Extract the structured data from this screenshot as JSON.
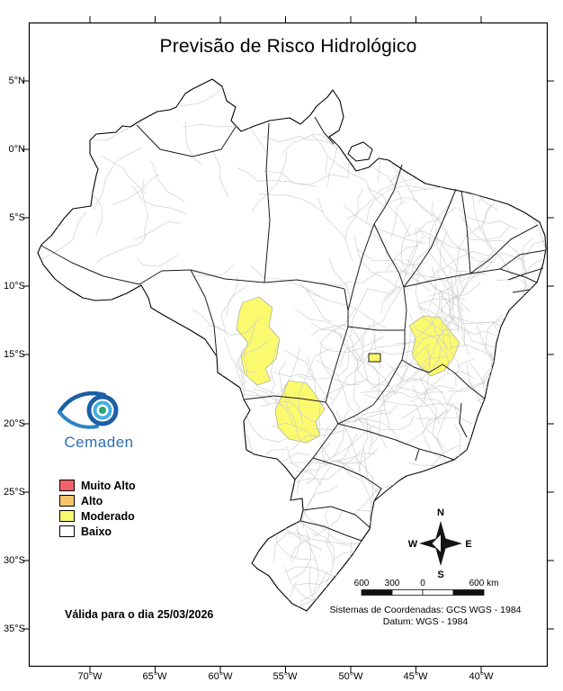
{
  "title": "Previsão de Risco Hidrológico",
  "logo": {
    "brand": "Cemaden"
  },
  "legend": {
    "items": [
      {
        "label": "Muito Alto",
        "color": "#f3636b"
      },
      {
        "label": "Alto",
        "color": "#f6c46d"
      },
      {
        "label": "Moderado",
        "color": "#fbfa6e"
      },
      {
        "label": "Baixo",
        "color": "#ffffff"
      }
    ]
  },
  "validity": "Válida para o dia 25/03/2026",
  "compass": {
    "north": "N",
    "south": "S",
    "east": "E",
    "west": "W"
  },
  "scalebar": {
    "labels": [
      "600",
      "300",
      "0",
      "600 km"
    ]
  },
  "coordinates": {
    "line1": "Sistemas de Coordenadas: GCS WGS - 1984",
    "line2": "Datum: WGS - 1984"
  },
  "axes": {
    "latitude": [
      "5°N",
      "0°N",
      "5°S",
      "10°S",
      "15°S",
      "20°S",
      "25°S",
      "30°S",
      "35°S"
    ],
    "longitude": [
      "70°W",
      "65°W",
      "60°W",
      "55°W",
      "50°W",
      "45°W",
      "40°W"
    ]
  },
  "map": {
    "fill": "#ffffff",
    "moderado_fill": "#fbfa6e",
    "state_line_color": "#1a1a1a",
    "municipality_color": "#cfcfcf",
    "highlighted_risk_level": "Moderado"
  }
}
